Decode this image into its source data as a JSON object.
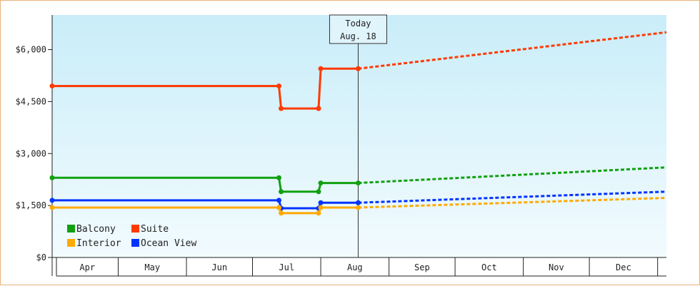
{
  "chart_data": {
    "type": "line",
    "x_axis": {
      "months": [
        "Apr",
        "May",
        "Jun",
        "Jul",
        "Aug",
        "Sep",
        "Oct",
        "Nov",
        "Dec"
      ],
      "start": "2024-04-01",
      "end": "2025-01-05"
    },
    "y_axis": {
      "ylim": [
        0,
        7000
      ],
      "ticks": [
        0,
        1500,
        3000,
        4500,
        6000
      ],
      "tick_labels": [
        "$0",
        "$1,500",
        "$3,000",
        "$4,500",
        "$6,000"
      ]
    },
    "today": {
      "label_line1": "Today",
      "label_line2": "Aug. 18",
      "date": "2024-08-18"
    },
    "series": [
      {
        "name": "Suite",
        "color": "#ff3a00",
        "points": [
          [
            "2024-04-01",
            4950
          ],
          [
            "2024-07-13",
            4950
          ],
          [
            "2024-07-14",
            4300
          ],
          [
            "2024-07-31",
            4300
          ],
          [
            "2024-08-01",
            5450
          ],
          [
            "2024-08-18",
            5450
          ]
        ],
        "forecast": [
          [
            "2024-08-18",
            5450
          ],
          [
            "2025-01-05",
            6500
          ]
        ]
      },
      {
        "name": "Balcony",
        "color": "#11a011",
        "points": [
          [
            "2024-04-01",
            2300
          ],
          [
            "2024-07-13",
            2300
          ],
          [
            "2024-07-14",
            1900
          ],
          [
            "2024-07-31",
            1900
          ],
          [
            "2024-08-01",
            2150
          ],
          [
            "2024-08-18",
            2150
          ]
        ],
        "forecast": [
          [
            "2024-08-18",
            2150
          ],
          [
            "2025-01-05",
            2600
          ]
        ]
      },
      {
        "name": "Ocean View",
        "color": "#0033ff",
        "points": [
          [
            "2024-04-01",
            1650
          ],
          [
            "2024-07-13",
            1650
          ],
          [
            "2024-07-14",
            1420
          ],
          [
            "2024-07-31",
            1420
          ],
          [
            "2024-08-01",
            1580
          ],
          [
            "2024-08-18",
            1580
          ]
        ],
        "forecast": [
          [
            "2024-08-18",
            1580
          ],
          [
            "2025-01-05",
            1900
          ]
        ]
      },
      {
        "name": "Interior",
        "color": "#ffaa00",
        "points": [
          [
            "2024-04-01",
            1440
          ],
          [
            "2024-07-13",
            1440
          ],
          [
            "2024-07-14",
            1280
          ],
          [
            "2024-07-31",
            1280
          ],
          [
            "2024-08-01",
            1440
          ],
          [
            "2024-08-18",
            1440
          ]
        ],
        "forecast": [
          [
            "2024-08-18",
            1440
          ],
          [
            "2025-01-05",
            1720
          ]
        ]
      }
    ],
    "legend": {
      "placement": "bottom-left",
      "order": [
        "Balcony",
        "Suite",
        "Interior",
        "Ocean View"
      ]
    },
    "gridlines": false,
    "background_gradient": [
      "#c9edf9",
      "#f2fbfe"
    ]
  }
}
